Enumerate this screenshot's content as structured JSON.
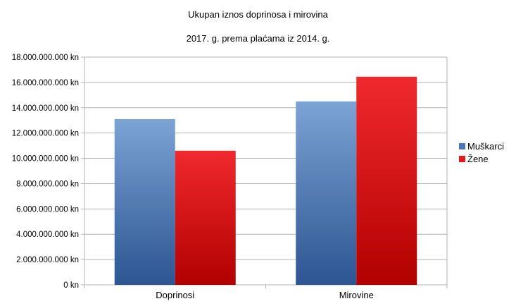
{
  "chart_data": {
    "type": "bar",
    "title": "Ukupan iznos doprinosa i mirovina",
    "subtitle": "2017. g. prema plaćama iz 2014. g.",
    "categories": [
      "Doprinosi",
      "Mirovine"
    ],
    "series": [
      {
        "name": "Muškarci",
        "values": [
          13100000000,
          14500000000
        ],
        "color_top": "#7ba3d4",
        "color_bottom": "#2c5592"
      },
      {
        "name": "Žene",
        "values": [
          10600000000,
          16450000000
        ],
        "color_top": "#f0292e",
        "color_bottom": "#b20000"
      }
    ],
    "ylim": [
      0,
      18000000000
    ],
    "yticks": [
      "0 kn",
      "2.000.000.000 kn",
      "4.000.000.000 kn",
      "6.000.000.000 kn",
      "8.000.000.000 kn",
      "10.000.000.000 kn",
      "12.000.000.000 kn",
      "14.000.000.000 kn",
      "16.000.000.000 kn",
      "18.000.000.000 kn"
    ],
    "ytick_values": [
      0,
      2000000000,
      4000000000,
      6000000000,
      8000000000,
      10000000000,
      12000000000,
      14000000000,
      16000000000,
      18000000000
    ],
    "grid": true,
    "legend_position": "right"
  }
}
